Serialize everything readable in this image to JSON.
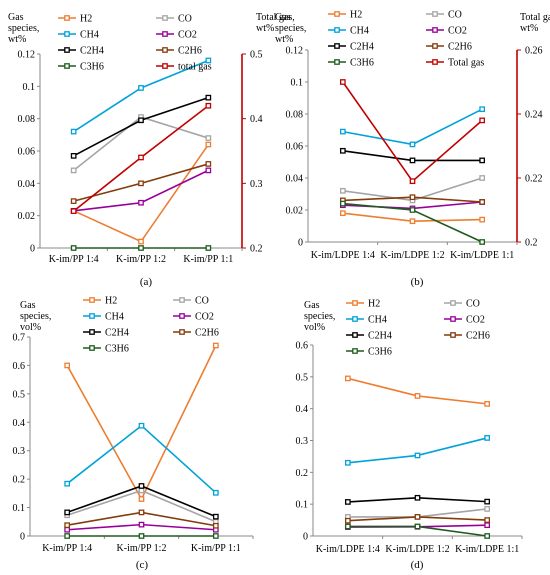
{
  "figure": {
    "charts": [
      {
        "id": "a",
        "panel_label": "(a)",
        "ylabel_left": [
          "Gas",
          "species,",
          "wt%"
        ],
        "ylabel_right": [
          "Total gas,",
          "wt%"
        ],
        "legend": [
          "H2",
          "CO",
          "CH4",
          "CO2",
          "C2H4",
          "C2H6",
          "C3H6",
          "total gas"
        ]
      },
      {
        "id": "b",
        "panel_label": "(b)",
        "ylabel_left": [
          "Gas",
          "species,",
          "wt%"
        ],
        "ylabel_right": [
          "Total gas,",
          "wt%"
        ],
        "legend": [
          "H2",
          "CO",
          "CH4",
          "CO2",
          "C2H4",
          "C2H6",
          "C3H6",
          "Total gas"
        ]
      },
      {
        "id": "c",
        "panel_label": "(c)",
        "ylabel_left": [
          "Gas",
          "species,",
          "vol%"
        ],
        "ylabel_right": [],
        "legend": [
          "H2",
          "CO",
          "CH4",
          "CO2",
          "C2H4",
          "C2H6",
          "C3H6"
        ]
      },
      {
        "id": "d",
        "panel_label": "(d)",
        "ylabel_left": [
          "Gas",
          "species,",
          "vol%"
        ],
        "ylabel_right": [],
        "legend": [
          "H2",
          "CO",
          "CH4",
          "CO2",
          "C2H4",
          "C2H6",
          "C3H6"
        ]
      }
    ]
  },
  "colors": {
    "H2": "#ed7d31",
    "CO": "#a5a5a5",
    "CH4": "#00a2d9",
    "CO2": "#990099",
    "C2H4": "#000000",
    "C2H6": "#843c0c",
    "C3H6": "#1e5c1e",
    "total": "#c00000"
  },
  "chart_data": [
    {
      "type": "line",
      "x": [
        "K-im/PP 1:4",
        "K-im/PP 1:2",
        "K-im/PP 1:1"
      ],
      "ylim": [
        0,
        0.12
      ],
      "yticks": [
        "0",
        "0.02",
        "0.04",
        "0.06",
        "0.08",
        "0.1",
        "0.12"
      ],
      "y2lim": [
        0.2,
        0.5
      ],
      "y2ticks": [
        "0.2",
        "0.3",
        "0.4",
        "0.5"
      ],
      "series": [
        {
          "name": "H2",
          "key": "H2",
          "values": [
            0.023,
            0.004,
            0.064
          ]
        },
        {
          "name": "CO",
          "key": "CO",
          "values": [
            0.048,
            0.081,
            0.068
          ]
        },
        {
          "name": "CH4",
          "key": "CH4",
          "values": [
            0.072,
            0.099,
            0.116
          ]
        },
        {
          "name": "CO2",
          "key": "CO2",
          "values": [
            0.023,
            0.028,
            0.048
          ]
        },
        {
          "name": "C2H4",
          "key": "C2H4",
          "values": [
            0.057,
            0.079,
            0.093
          ]
        },
        {
          "name": "C2H6",
          "key": "C2H6",
          "values": [
            0.029,
            0.04,
            0.052
          ]
        },
        {
          "name": "C3H6",
          "key": "C3H6",
          "values": [
            0,
            0,
            0
          ]
        },
        {
          "name": "total gas",
          "key": "total",
          "axis": "right",
          "values": [
            0.257,
            0.34,
            0.42
          ]
        }
      ]
    },
    {
      "type": "line",
      "x": [
        "K-im/LDPE 1:4",
        "K-im/LDPE 1:2",
        "K-im/LDPE 1:1"
      ],
      "ylim": [
        0,
        0.12
      ],
      "yticks": [
        "0",
        "0.02",
        "0.04",
        "0.06",
        "0.08",
        "0.1",
        "0.12"
      ],
      "y2lim": [
        0.2,
        0.26
      ],
      "y2ticks": [
        "0.2",
        "0.22",
        "0.24",
        "0.26"
      ],
      "series": [
        {
          "name": "H2",
          "key": "H2",
          "values": [
            0.018,
            0.013,
            0.014
          ]
        },
        {
          "name": "CO",
          "key": "CO",
          "values": [
            0.032,
            0.026,
            0.04
          ]
        },
        {
          "name": "CH4",
          "key": "CH4",
          "values": [
            0.069,
            0.061,
            0.083
          ]
        },
        {
          "name": "CO2",
          "key": "CO2",
          "values": [
            0.023,
            0.021,
            0.025
          ]
        },
        {
          "name": "C2H4",
          "key": "C2H4",
          "values": [
            0.057,
            0.051,
            0.051
          ]
        },
        {
          "name": "C2H6",
          "key": "C2H6",
          "values": [
            0.026,
            0.028,
            0.025
          ]
        },
        {
          "name": "C3H6",
          "key": "C3H6",
          "values": [
            0.024,
            0.02,
            0
          ]
        },
        {
          "name": "Total gas",
          "key": "total",
          "axis": "right",
          "values": [
            0.25,
            0.219,
            0.238
          ]
        }
      ]
    },
    {
      "type": "line",
      "x": [
        "K-im/PP 1:4",
        "K-im/PP 1:2",
        "K-im/PP 1:1"
      ],
      "ylim": [
        0,
        0.7
      ],
      "yticks": [
        "0",
        "0.1",
        "0.2",
        "0.3",
        "0.4",
        "0.5",
        "0.6",
        "0.7"
      ],
      "series": [
        {
          "name": "H2",
          "key": "H2",
          "values": [
            0.6,
            0.13,
            0.67
          ]
        },
        {
          "name": "CO",
          "key": "CO",
          "values": [
            0.073,
            0.16,
            0.05
          ]
        },
        {
          "name": "CH4",
          "key": "CH4",
          "values": [
            0.184,
            0.388,
            0.152
          ]
        },
        {
          "name": "CO2",
          "key": "CO2",
          "values": [
            0.022,
            0.04,
            0.022
          ]
        },
        {
          "name": "C2H4",
          "key": "C2H4",
          "values": [
            0.083,
            0.176,
            0.068
          ]
        },
        {
          "name": "C2H6",
          "key": "C2H6",
          "values": [
            0.038,
            0.083,
            0.036
          ]
        },
        {
          "name": "C3H6",
          "key": "C3H6",
          "values": [
            0,
            0,
            0
          ]
        }
      ]
    },
    {
      "type": "line",
      "x": [
        "K-im/LDPE 1:4",
        "K-im/LDPE 1:2",
        "K-im/LDPE 1:1"
      ],
      "ylim": [
        0,
        0.6
      ],
      "yticks": [
        "0",
        "0.1",
        "0.2",
        "0.3",
        "0.4",
        "0.5",
        "0.6"
      ],
      "series": [
        {
          "name": "H2",
          "key": "H2",
          "values": [
            0.495,
            0.44,
            0.415
          ]
        },
        {
          "name": "CO",
          "key": "CO",
          "values": [
            0.06,
            0.06,
            0.085
          ]
        },
        {
          "name": "CH4",
          "key": "CH4",
          "values": [
            0.23,
            0.253,
            0.308
          ]
        },
        {
          "name": "CO2",
          "key": "CO2",
          "values": [
            0.028,
            0.029,
            0.034
          ]
        },
        {
          "name": "C2H4",
          "key": "C2H4",
          "values": [
            0.107,
            0.12,
            0.108
          ]
        },
        {
          "name": "C2H6",
          "key": "C2H6",
          "values": [
            0.048,
            0.06,
            0.05
          ]
        },
        {
          "name": "C3H6",
          "key": "C3H6",
          "values": [
            0.03,
            0.03,
            0
          ]
        }
      ]
    }
  ]
}
